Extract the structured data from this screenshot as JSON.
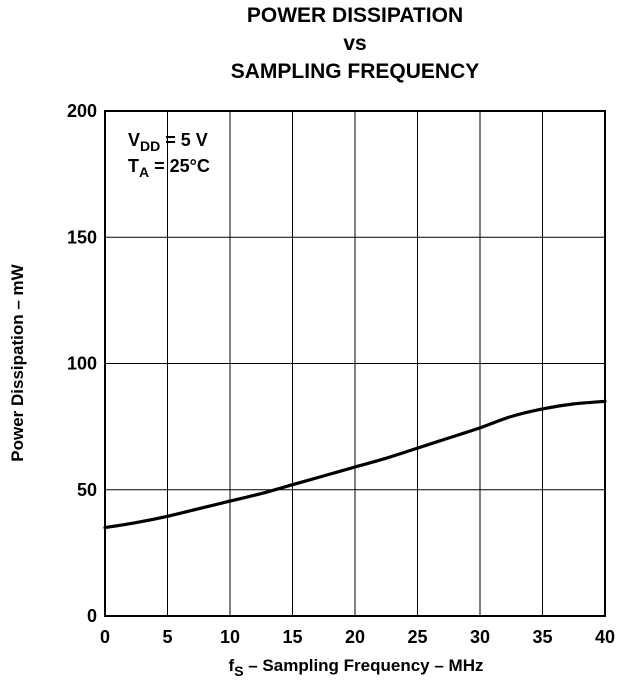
{
  "chart_data": {
    "type": "line",
    "title_lines": [
      "POWER DISSIPATION",
      "vs",
      "SAMPLING FREQUENCY"
    ],
    "xlabel": {
      "prefix": "f",
      "subscript": "S",
      "rest": " – Sampling Frequency – MHz"
    },
    "ylabel": "Power Dissipation – mW",
    "xlim": [
      0,
      40
    ],
    "ylim": [
      0,
      200
    ],
    "xticks": [
      0,
      5,
      10,
      15,
      20,
      25,
      30,
      35,
      40
    ],
    "yticks": [
      0,
      50,
      100,
      150,
      200
    ],
    "grid": true,
    "annotations": [
      {
        "main": "V",
        "subscript": "DD",
        "rest": " = 5 V"
      },
      {
        "main": "T",
        "subscript": "A",
        "rest": " = 25°C"
      }
    ],
    "series": [
      {
        "x": [
          0,
          2.5,
          5,
          7.5,
          10,
          12.5,
          15,
          17.5,
          20,
          22.5,
          25,
          27.5,
          30,
          32.5,
          35,
          37.5,
          40
        ],
        "values": [
          35,
          37,
          39.5,
          42.5,
          45.5,
          48.5,
          52,
          55.5,
          59,
          62.5,
          66.5,
          70.5,
          74.5,
          79,
          82,
          84,
          85
        ]
      }
    ],
    "colors": {
      "line": "#000000",
      "grid": "#000000",
      "background": "#ffffff"
    }
  }
}
